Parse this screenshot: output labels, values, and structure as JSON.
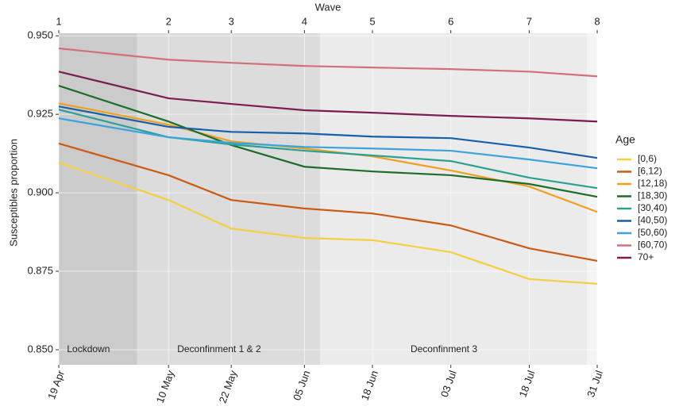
{
  "chart_data": {
    "type": "line",
    "x_title": "Wave",
    "wave_ticks": [
      1,
      2,
      3,
      4,
      5,
      6,
      7,
      8
    ],
    "y_title": "Susceptibles proportion",
    "x": [
      "19 Apr",
      "10 May",
      "22 May",
      "05 Jun",
      "18 Jun",
      "03 Jul",
      "18 Jul",
      "31 Jul"
    ],
    "ylim": [
      0.8452,
      0.9508
    ],
    "yticks": [
      {
        "value": 0.85,
        "label": "0.850"
      },
      {
        "value": 0.875,
        "label": "0.875"
      },
      {
        "value": 0.9,
        "label": "0.900"
      },
      {
        "value": 0.925,
        "label": "0.925"
      },
      {
        "value": 0.95,
        "label": "0.950"
      }
    ],
    "grid": true,
    "periods": [
      {
        "label": "Lockdown",
        "start": "19 Apr",
        "end": "04 May",
        "color": "#cbcbcb"
      },
      {
        "label": "Deconfinment 1 & 2",
        "start": "04 May",
        "end": "08 Jun",
        "color": "#dcdcdc"
      },
      {
        "label": "Deconfinment 3",
        "start": "08 Jun",
        "end": "29 Jul",
        "color": "#ebebeb"
      }
    ],
    "legend_title": "Age",
    "legend": "right",
    "series": [
      {
        "name": "[0,6)",
        "color": "#f3d03e",
        "values": [
          0.9096,
          0.8977,
          0.8886,
          0.8856,
          0.8849,
          0.8811,
          0.8725,
          0.871
        ]
      },
      {
        "name": "[6,12)",
        "color": "#cc5a12",
        "values": [
          0.9157,
          0.9056,
          0.8977,
          0.895,
          0.8934,
          0.8896,
          0.8823,
          0.8783
        ]
      },
      {
        "name": "[12,18)",
        "color": "#f0a01b",
        "values": [
          0.9285,
          0.9217,
          0.9164,
          0.9141,
          0.9116,
          0.9071,
          0.902,
          0.8939
        ]
      },
      {
        "name": "[18,30)",
        "color": "#1b6e2a",
        "values": [
          0.9341,
          0.9227,
          0.9152,
          0.9083,
          0.9068,
          0.9056,
          0.9028,
          0.8987
        ]
      },
      {
        "name": "[30,40)",
        "color": "#2aa194",
        "values": [
          0.9265,
          0.9177,
          0.9154,
          0.9134,
          0.9119,
          0.9101,
          0.9048,
          0.9015
        ]
      },
      {
        "name": "[40,50)",
        "color": "#1560a8",
        "values": [
          0.9275,
          0.921,
          0.9194,
          0.9189,
          0.9179,
          0.9174,
          0.9144,
          0.9111
        ]
      },
      {
        "name": "[50,60)",
        "color": "#3ba4dc",
        "values": [
          0.9237,
          0.9177,
          0.9159,
          0.9146,
          0.9141,
          0.9134,
          0.9106,
          0.9078
        ]
      },
      {
        "name": "[60,70)",
        "color": "#d2707a",
        "values": [
          0.946,
          0.9424,
          0.9414,
          0.9404,
          0.9399,
          0.9394,
          0.9386,
          0.9371
        ]
      },
      {
        "name": "70+",
        "color": "#7b1e4f",
        "values": [
          0.9386,
          0.9301,
          0.9283,
          0.9263,
          0.9255,
          0.9245,
          0.9237,
          0.9227
        ]
      }
    ]
  }
}
